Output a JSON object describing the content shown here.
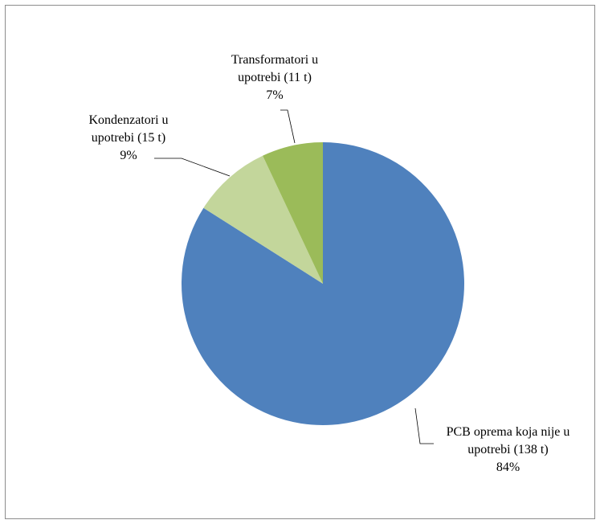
{
  "chart_data": {
    "type": "pie",
    "categories": [
      "PCB oprema koja nije u upotrebi (138 t)",
      "Kondenzatori u upotrebi (15 t)",
      "Transformatori u upotrebi (11 t)"
    ],
    "values": [
      84,
      9,
      7
    ],
    "value_labels": [
      "84%",
      "9%",
      "7%"
    ],
    "colors": [
      "#4f81bd",
      "#c3d69b",
      "#9bbb59"
    ]
  }
}
